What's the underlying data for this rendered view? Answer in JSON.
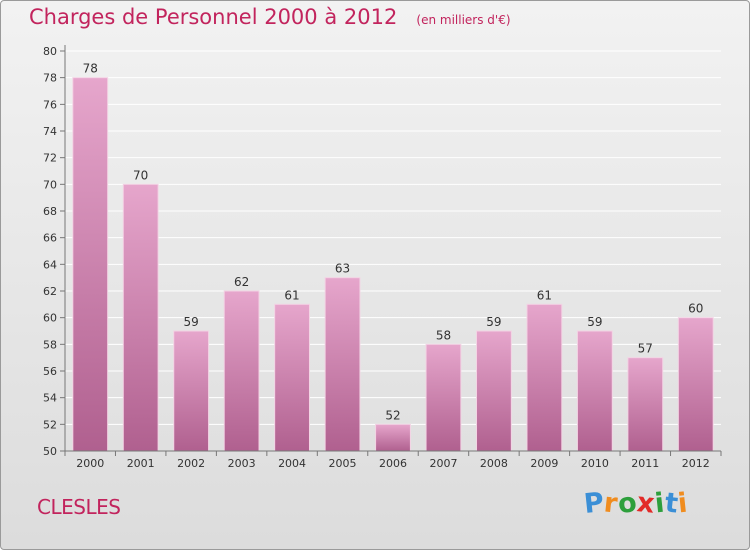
{
  "title": "Charges de Personnel 2000 à 2012",
  "subtitle": "(en milliers d'€)",
  "location": "CLESLES",
  "brand": {
    "name": "Proxiti",
    "letters": [
      "P",
      "r",
      "o",
      "x",
      "i",
      "t",
      "i"
    ],
    "letter_colors": [
      "#3b8fd6",
      "#f08c1e",
      "#2d9f3c",
      "#e22a28",
      "#2d9f3c",
      "#3b8fd6",
      "#f08c1e"
    ]
  },
  "colors": {
    "bar_top": "#e6a6cc",
    "bar_bottom": "#b0608f",
    "title": "#c2245d",
    "axis_text": "#333333"
  },
  "chart_data": {
    "type": "bar",
    "categories": [
      "2000",
      "2001",
      "2002",
      "2003",
      "2004",
      "2005",
      "2006",
      "2007",
      "2008",
      "2009",
      "2010",
      "2011",
      "2012"
    ],
    "values": [
      78,
      70,
      59,
      62,
      61,
      63,
      52,
      58,
      59,
      61,
      59,
      57,
      60
    ],
    "data_labels": [
      "78",
      "70",
      "59",
      "62",
      "61",
      "63",
      "52",
      "58",
      "59",
      "61",
      "59",
      "57",
      "60"
    ],
    "ylim": [
      50,
      80
    ],
    "y_ticks": [
      50,
      52,
      54,
      56,
      58,
      60,
      62,
      64,
      66,
      68,
      70,
      72,
      74,
      76,
      78,
      80
    ],
    "y_tick_labels": [
      "50",
      "52",
      "54",
      "56",
      "58",
      "60",
      "62",
      "64",
      "66",
      "68",
      "70",
      "72",
      "74",
      "76",
      "78",
      "80"
    ],
    "grid": true,
    "xlabel": "",
    "ylabel": ""
  }
}
